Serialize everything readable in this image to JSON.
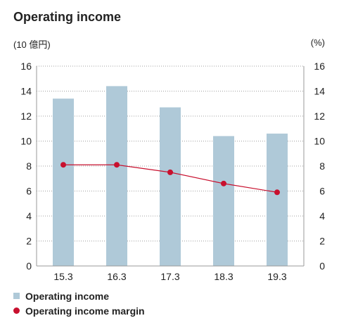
{
  "chart_data": {
    "type": "bar",
    "title": "Operating income",
    "categories": [
      "15.3",
      "16.3",
      "17.3",
      "18.3",
      "19.3"
    ],
    "series": [
      {
        "name": "Operating income",
        "type": "bar",
        "axis": "left",
        "values": [
          13.4,
          14.4,
          12.7,
          10.4,
          10.6
        ]
      },
      {
        "name": "Operating income margin",
        "type": "line",
        "axis": "right",
        "values": [
          8.1,
          8.1,
          7.5,
          6.6,
          5.9
        ]
      }
    ],
    "y_left": {
      "unit": "(10 億円)",
      "ylim": [
        0,
        16
      ],
      "ticks": [
        "0",
        "2",
        "4",
        "6",
        "8",
        "10",
        "12",
        "14",
        "16"
      ]
    },
    "y_right": {
      "unit": "(%)",
      "ylim": [
        0,
        16
      ],
      "ticks": [
        "0",
        "2",
        "4",
        "6",
        "8",
        "10",
        "12",
        "14",
        "16"
      ]
    },
    "grid": "dotted-horizontal",
    "legend_position": "bottom-left",
    "colors": {
      "bar": "#afc9d8",
      "line": "#c8102e",
      "grid": "#a0a0a0",
      "axis": "#9a9a9a"
    }
  }
}
